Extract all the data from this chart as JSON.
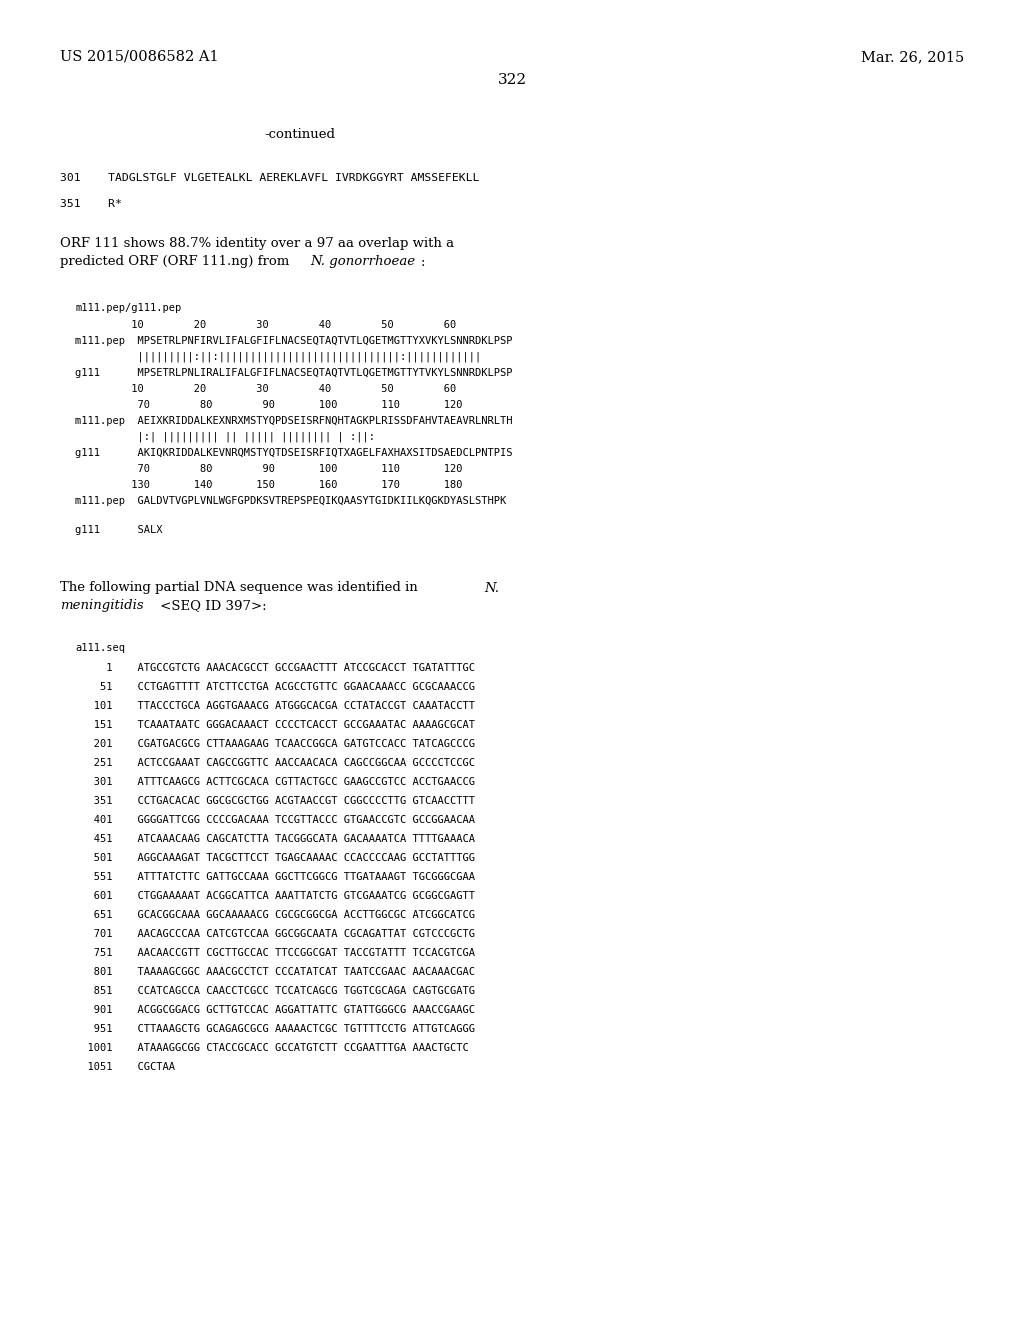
{
  "header_left": "US 2015/0086582 A1",
  "header_right": "Mar. 26, 2015",
  "page_number": "322",
  "background_color": "#ffffff",
  "text_color": "#000000",
  "line_301": "301    TADGLSTGLF VLGETEALKL AEREKLAVFL IVRDKGGYRT AMSSEFEKLL",
  "line_351": "351    R*",
  "para1_line1": "ORF 111 shows 88.7% identity over a 97 aa overlap with a",
  "para1_line2_pre": "predicted ORF (ORF 111.ng) from ",
  "para1_line2_italic": "N. gonorrhoeae",
  "para1_line2_post": ":",
  "align_header": "m111.pep/g111.pep",
  "align_nums1": "         10        20        30        40        50        60",
  "align_m1": "m111.pep  MPSETRLPNFIRVLIFALGFIFLNACSEQTAQTVTLQGETMGTTYXVKYLSNNRDKLPSP",
  "align_bars1": "          |||||||||:||:|||||||||||||||||||||||||||||:||||||||||||",
  "align_g1": "g111      MPSETRLPNLIRALIFALGFIFLNACSEQTAQTVTLQGETMGTTYTVKYLSNNRDKLPSP",
  "align_nums1b": "         10        20        30        40        50        60",
  "align_nums2": "          70        80        90       100       110       120",
  "align_m2": "m111.pep  AEIXKRIDDALKEXNRXMSTYQPDSEISRFNQHTAGKPLRISSDFAHVTAEAVRLNRLTH",
  "align_bars2": "          |:| ||||||||| || ||||| |||||||| | :||:",
  "align_g2": "g111      AKIQKRIDDALKEVNRQMSTYQTDSEISRFIQTXAGELFAXHAXSITDSAEDCLPNTPIS",
  "align_nums2b": "          70        80        90       100       110       120",
  "align_nums3": "         130       140       150       160       170       180",
  "align_m3": "m111.pep  GALDVTVGPLVNLWGFGPDKSVTREPSPEQIKQAASYTGIDKIILKQGKDYASLSTHPK",
  "align_g3": "g111      SALX",
  "dna_intro1_pre": "The following partial DNA sequence was identified in ",
  "dna_intro1_italic": "N.",
  "dna_intro2_italic": "meningitidis",
  "dna_intro2_post": " <SEQ ID 397>:",
  "dna_label": "a111.seq",
  "dna_lines": [
    "     1    ATGCCGTCTG AAACACGCCT GCCGAACTTT ATCCGCACCT TGATATTTGC",
    "    51    CCTGAGTTTT ATCTTCCTGA ACGCCTGTTC GGAACAAACC GCGCAAACCG",
    "   101    TTACCCTGCA AGGTGAAACG ATGGGCACGA CCTATACCGT CAAATACCTT",
    "   151    TCAAATAATC GGGACAAACT CCCCTCACCT GCCGAAATAC AAAAGCGCAT",
    "   201    CGATGACGCG CTTAAAGAAG TCAACCGGCA GATGTCCACC TATCAGCCCG",
    "   251    ACTCCGAAAT CAGCCGGTTC AACCAACACA CAGCCGGCAA GCCCCTCCGC",
    "   301    ATTTCAAGCG ACTTCGCACA CGTTACTGCC GAAGCCGTCC ACCTGAACCG",
    "   351    CCTGACACAC GGCGCGCTGG ACGTAACCGT CGGCCCCTTG GTCAACCTTT",
    "   401    GGGGATTCGG CCCCGACAAA TCCGTTACCC GTGAACCGTC GCCGGAACAA",
    "   451    ATCAAACAAG CAGCATCTTA TACGGGCATA GACAAAATCA TTTTGAAACA",
    "   501    AGGCAAAGAT TACGCTTCCT TGAGCAAAAC CCACCCCAAG GCCTATTTGG",
    "   551    ATTTATCTTC GATTGCCAAA GGCTTCGGCG TTGATAAAGT TGCGGGCGAA",
    "   601    CTGGAAAAAT ACGGCATTCA AAATTATCTG GTCGAAATCG GCGGCGAGTT",
    "   651    GCACGGCAAA GGCAAAAACG CGCGCGGCGA ACCTTGGCGC ATCGGCATCG",
    "   701    AACAGCCCAA CATCGTCCAA GGCGGCAATA CGCAGATTAT CGTCCCGCTG",
    "   751    AACAACCGTT CGCTTGCCAC TTCCGGCGAT TACCGTATTT TCCACGTCGA",
    "   801    TAAAAGCGGC AAACGCCTCT CCCATATCAT TAATCCGAAC AACAAACGAC",
    "   851    CCATCAGCCA CAACCTCGCC TCCATCAGCG TGGTCGCAGA CAGTGCGATG",
    "   901    ACGGCGGACG GCTTGTCCAC AGGATTATTC GTATTGGGCG AAACCGAAGC",
    "   951    CTTAAAGCTG GCAGAGCGCG AAAAACTCGC TGTTTTCCTG ATTGTCAGGG",
    "  1001    ATAAAGGCGG CTACCGCACC GCCATGTCTT CCGAATTTGA AAACTGCTC",
    "  1051    CGCTAA"
  ]
}
